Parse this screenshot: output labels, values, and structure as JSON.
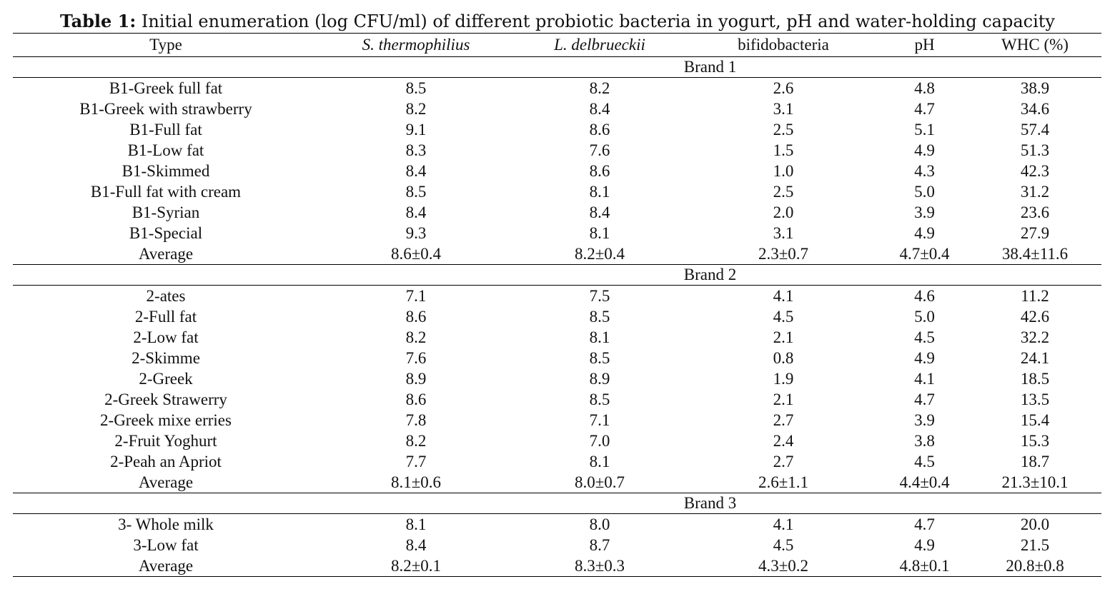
{
  "caption": {
    "label": "Table 1:",
    "text": " Initial enumeration (log CFU/ml) of different probiotic bacteria in yogurt, pH and water-holding capacity"
  },
  "headers": {
    "type": "Type",
    "s_thermophilus": "S. thermophilius",
    "l_delbrueckii": "L. delbrueckii",
    "bifidobacteria": "bifidobacteria",
    "ph": "pH",
    "whc": "WHC (%)"
  },
  "brands": [
    {
      "name": "Brand 1",
      "rows": [
        {
          "type": "B1-Greek full fat",
          "s": "8.5",
          "l": "8.2",
          "b": "2.6",
          "ph": "4.8",
          "whc": "38.9"
        },
        {
          "type": "B1-Greek with strawberry",
          "s": "8.2",
          "l": "8.4",
          "b": "3.1",
          "ph": "4.7",
          "whc": "34.6"
        },
        {
          "type": "B1-Full fat",
          "s": "9.1",
          "l": "8.6",
          "b": "2.5",
          "ph": "5.1",
          "whc": "57.4"
        },
        {
          "type": "B1-Low fat",
          "s": "8.3",
          "l": "7.6",
          "b": "1.5",
          "ph": "4.9",
          "whc": "51.3"
        },
        {
          "type": "B1-Skimmed",
          "s": "8.4",
          "l": "8.6",
          "b": "1.0",
          "ph": "4.3",
          "whc": "42.3"
        },
        {
          "type": "B1-Full fat with cream",
          "s": "8.5",
          "l": "8.1",
          "b": "2.5",
          "ph": "5.0",
          "whc": "31.2"
        },
        {
          "type": "B1-Syrian",
          "s": "8.4",
          "l": "8.4",
          "b": "2.0",
          "ph": "3.9",
          "whc": "23.6"
        },
        {
          "type": "B1-Special",
          "s": "9.3",
          "l": "8.1",
          "b": "3.1",
          "ph": "4.9",
          "whc": "27.9"
        }
      ],
      "average": {
        "type": "Average",
        "s": "8.6±0.4",
        "l": "8.2±0.4",
        "b": "2.3±0.7",
        "ph": "4.7±0.4",
        "whc": "38.4±11.6"
      }
    },
    {
      "name": "Brand 2",
      "rows": [
        {
          "type": "2-ates",
          "s": "7.1",
          "l": "7.5",
          "b": "4.1",
          "ph": "4.6",
          "whc": "11.2"
        },
        {
          "type": "2-Full fat",
          "s": "8.6",
          "l": "8.5",
          "b": "4.5",
          "ph": "5.0",
          "whc": "42.6"
        },
        {
          "type": "2-Low fat",
          "s": "8.2",
          "l": "8.1",
          "b": "2.1",
          "ph": "4.5",
          "whc": "32.2"
        },
        {
          "type": "2-Skimme",
          "s": "7.6",
          "l": "8.5",
          "b": "0.8",
          "ph": "4.9",
          "whc": "24.1"
        },
        {
          "type": "2-Greek",
          "s": "8.9",
          "l": "8.9",
          "b": "1.9",
          "ph": "4.1",
          "whc": "18.5"
        },
        {
          "type": "2-Greek Strawerry",
          "s": "8.6",
          "l": "8.5",
          "b": "2.1",
          "ph": "4.7",
          "whc": "13.5"
        },
        {
          "type": "2-Greek mixe erries",
          "s": "7.8",
          "l": "7.1",
          "b": "2.7",
          "ph": "3.9",
          "whc": "15.4"
        },
        {
          "type": "2-Fruit Yoghurt",
          "s": "8.2",
          "l": "7.0",
          "b": "2.4",
          "ph": "3.8",
          "whc": "15.3"
        },
        {
          "type": "2-Peah an Apriot",
          "s": "7.7",
          "l": "8.1",
          "b": "2.7",
          "ph": "4.5",
          "whc": "18.7"
        }
      ],
      "average": {
        "type": "Average",
        "s": "8.1±0.6",
        "l": "8.0±0.7",
        "b": "2.6±1.1",
        "ph": "4.4±0.4",
        "whc": "21.3±10.1"
      }
    },
    {
      "name": "Brand 3",
      "rows": [
        {
          "type": "3- Whole milk",
          "s": "8.1",
          "l": "8.0",
          "b": "4.1",
          "ph": "4.7",
          "whc": "20.0"
        },
        {
          "type": "3-Low fat",
          "s": "8.4",
          "l": "8.7",
          "b": "4.5",
          "ph": "4.9",
          "whc": "21.5"
        }
      ],
      "average": {
        "type": "Average",
        "s": "8.2±0.1",
        "l": "8.3±0.3",
        "b": "4.3±0.2",
        "ph": "4.8±0.1",
        "whc": "20.8±0.8"
      }
    }
  ]
}
